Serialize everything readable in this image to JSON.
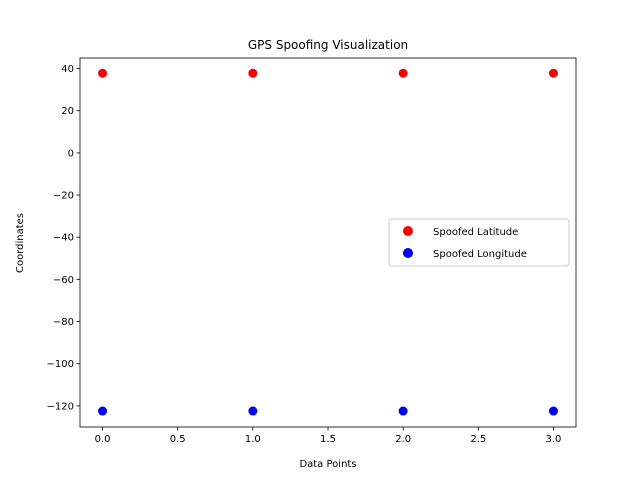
{
  "chart_data": {
    "type": "scatter",
    "title": "GPS Spoofing Visualization",
    "xlabel": "Data Points",
    "ylabel": "Coordinates",
    "xlim": [
      -0.15,
      3.15
    ],
    "ylim": [
      -130,
      45
    ],
    "xticks": [
      0.0,
      0.5,
      1.0,
      1.5,
      2.0,
      2.5,
      3.0
    ],
    "xtick_labels": [
      "0.0",
      "0.5",
      "1.0",
      "1.5",
      "2.0",
      "2.5",
      "3.0"
    ],
    "yticks": [
      40,
      20,
      0,
      -20,
      -40,
      -60,
      -80,
      -100,
      -120
    ],
    "ytick_labels": [
      "40",
      "20",
      "0",
      "−20",
      "−40",
      "−60",
      "−80",
      "−100",
      "−120"
    ],
    "grid": false,
    "legend_position": "center-right",
    "series": [
      {
        "name": "Spoofed Latitude",
        "color": "#ff0000",
        "x": [
          0,
          1,
          2,
          3
        ],
        "y": [
          37.7749,
          37.7749,
          37.7749,
          37.7749
        ]
      },
      {
        "name": "Spoofed Longitude",
        "color": "#0000ff",
        "x": [
          0,
          1,
          2,
          3
        ],
        "y": [
          -122.4194,
          -122.4194,
          -122.4194,
          -122.4194
        ]
      }
    ]
  }
}
